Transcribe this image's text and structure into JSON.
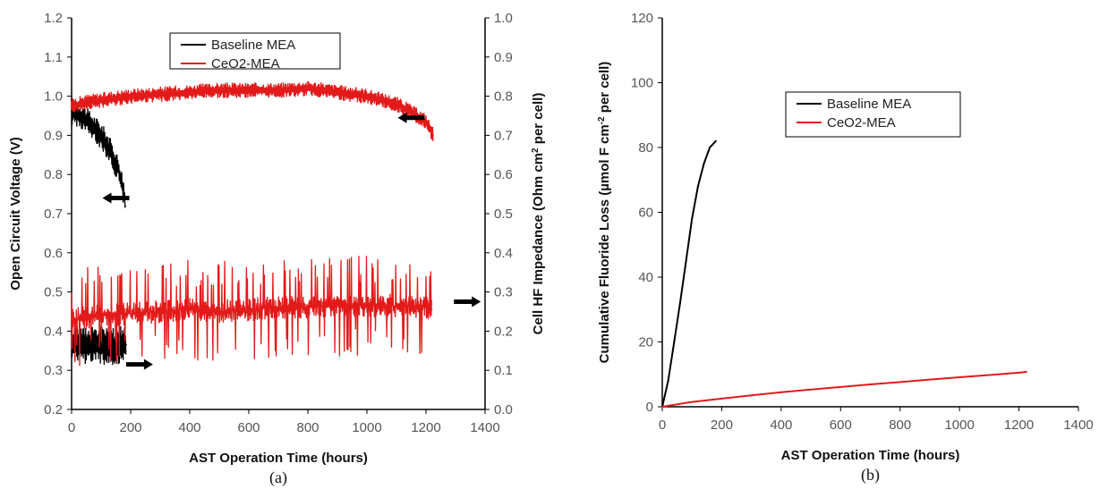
{
  "colors": {
    "baseline": "#000000",
    "ceo2": "#e31a1a",
    "axis": "#000000"
  },
  "chart_data": [
    {
      "type": "line",
      "caption": "(a)",
      "xlabel": "AST Operation Time (hours)",
      "ylabel": "Open Circuit Voltage (V)",
      "y2label": "Cell HF Impedance (Ohm cm",
      "y2label_sup": "2",
      "y2label_tail": " per cell)",
      "xlim": [
        0,
        1400
      ],
      "ylim": [
        0.2,
        1.2
      ],
      "y2lim": [
        0.0,
        1.0
      ],
      "xticks": [
        "0",
        "200",
        "400",
        "600",
        "800",
        "1000",
        "1200",
        "1400"
      ],
      "yticks": [
        "0.2",
        "0.3",
        "0.4",
        "0.5",
        "0.6",
        "0.7",
        "0.8",
        "0.9",
        "1.0",
        "1.1",
        "1.2"
      ],
      "y2ticks": [
        "0.0",
        "0.1",
        "0.2",
        "0.3",
        "0.4",
        "0.5",
        "0.6",
        "0.7",
        "0.8",
        "0.9",
        "1.0"
      ],
      "legend": {
        "placement": "top-center",
        "entries": [
          "Baseline MEA",
          "CeO2-MEA"
        ]
      },
      "series": [
        {
          "name": "Baseline MEA",
          "axis": "left",
          "x": [
            0,
            20,
            40,
            60,
            80,
            100,
            120,
            140,
            160,
            175,
            182
          ],
          "y": [
            0.96,
            0.955,
            0.945,
            0.93,
            0.915,
            0.9,
            0.875,
            0.845,
            0.81,
            0.76,
            0.72
          ]
        },
        {
          "name": "CeO2-MEA",
          "axis": "left",
          "x": [
            0,
            50,
            100,
            200,
            300,
            400,
            500,
            600,
            700,
            800,
            900,
            1000,
            1100,
            1150,
            1200,
            1225
          ],
          "y": [
            0.975,
            0.985,
            0.99,
            1.0,
            1.005,
            1.01,
            1.015,
            1.015,
            1.015,
            1.02,
            1.01,
            1.0,
            0.98,
            0.96,
            0.935,
            0.9
          ]
        },
        {
          "name": "Baseline MEA",
          "axis": "right",
          "x": [
            0,
            25,
            50,
            75,
            100,
            125,
            150,
            175,
            185
          ],
          "y": [
            0.17,
            0.165,
            0.165,
            0.17,
            0.165,
            0.16,
            0.16,
            0.165,
            0.165
          ]
        },
        {
          "name": "CeO2-MEA",
          "axis": "right",
          "x": [
            0,
            100,
            200,
            300,
            400,
            500,
            600,
            700,
            800,
            900,
            1000,
            1100,
            1200,
            1220
          ],
          "y": [
            0.23,
            0.24,
            0.245,
            0.25,
            0.255,
            0.25,
            0.255,
            0.26,
            0.26,
            0.265,
            0.265,
            0.265,
            0.26,
            0.255
          ]
        }
      ],
      "arrows": [
        {
          "direction": "left",
          "x": 150,
          "y": 0.74
        },
        {
          "direction": "right",
          "x": 230,
          "y": 0.315
        },
        {
          "direction": "left",
          "x": 1150,
          "y": 0.945
        },
        {
          "direction": "right",
          "x": 1340,
          "y": 0.475
        }
      ]
    },
    {
      "type": "line",
      "caption": "(b)",
      "xlabel": "AST Operation Time (hours)",
      "ylabel": "Cumulative Fluoride Loss (µmol F cm",
      "ylabel_sup": "-2",
      "ylabel_tail": " per cell)",
      "xlim": [
        0,
        1400
      ],
      "ylim": [
        0,
        120
      ],
      "xticks": [
        "0",
        "200",
        "400",
        "600",
        "800",
        "1000",
        "1200",
        "1400"
      ],
      "yticks": [
        "0",
        "20",
        "40",
        "60",
        "80",
        "100",
        "120"
      ],
      "legend": {
        "placement": "top-center",
        "entries": [
          "Baseline MEA",
          "CeO2-MEA"
        ]
      },
      "series": [
        {
          "name": "Baseline MEA",
          "x": [
            0,
            20,
            40,
            60,
            80,
            100,
            120,
            140,
            160,
            180
          ],
          "y": [
            0,
            8,
            20,
            32,
            45,
            58,
            68,
            75,
            80,
            82
          ]
        },
        {
          "name": "CeO2-MEA",
          "x": [
            0,
            100,
            200,
            300,
            400,
            500,
            600,
            700,
            800,
            900,
            1000,
            1100,
            1200,
            1225
          ],
          "y": [
            0,
            1.5,
            2.5,
            3.5,
            4.5,
            5.3,
            6.1,
            6.9,
            7.6,
            8.4,
            9.1,
            9.8,
            10.5,
            10.8
          ]
        }
      ]
    }
  ]
}
